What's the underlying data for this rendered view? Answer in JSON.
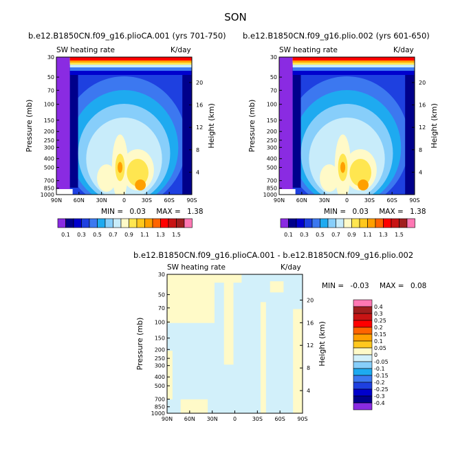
{
  "title": "SON",
  "chart_data": [
    {
      "type": "heatmap",
      "title": "b.e12.B1850CN.f09_g16.plioCA.001 (yrs 701-750)",
      "subtitle_left": "SW heating rate",
      "subtitle_right": "K/day",
      "ylabel": "Pressure (mb)",
      "ylabel_right": "Height (km)",
      "x_ticks": [
        "90N",
        "60N",
        "30N",
        "0",
        "30S",
        "60S",
        "90S"
      ],
      "y_ticks": [
        "30",
        "50",
        "70",
        "100",
        "150",
        "200",
        "250",
        "300",
        "400",
        "500",
        "700",
        "850",
        "1000"
      ],
      "y_ticks_right": [
        "20",
        "16",
        "12",
        "8",
        "4"
      ],
      "stats": {
        "min_label": "MIN =",
        "min": "0.03",
        "max_label": "MAX =",
        "max": "1.38"
      },
      "colorbar_labels": [
        "0.1",
        "0.3",
        "0.5",
        "0.7",
        "0.9",
        "1.1",
        "1.3",
        "1.5"
      ],
      "ylim": [
        1000,
        30
      ]
    },
    {
      "type": "heatmap",
      "title": "b.e12.B1850CN.f09_g16.plio.002 (yrs 601-650)",
      "subtitle_left": "SW heating rate",
      "subtitle_right": "K/day",
      "ylabel": "Pressure (mb)",
      "ylabel_right": "Height (km)",
      "x_ticks": [
        "90N",
        "60N",
        "30N",
        "0",
        "30S",
        "60S",
        "90S"
      ],
      "y_ticks": [
        "30",
        "50",
        "70",
        "100",
        "150",
        "200",
        "250",
        "300",
        "400",
        "500",
        "700",
        "850",
        "1000"
      ],
      "y_ticks_right": [
        "20",
        "16",
        "12",
        "8",
        "4"
      ],
      "stats": {
        "min_label": "MIN =",
        "min": "0.03",
        "max_label": "MAX =",
        "max": "1.38"
      },
      "colorbar_labels": [
        "0.1",
        "0.3",
        "0.5",
        "0.7",
        "0.9",
        "1.1",
        "1.3",
        "1.5"
      ],
      "ylim": [
        1000,
        30
      ]
    },
    {
      "type": "heatmap",
      "title": "b.e12.B1850CN.f09_g16.plioCA.001 - b.e12.B1850CN.f09_g16.plio.002",
      "subtitle_left": "SW heating rate",
      "subtitle_right": "K/day",
      "ylabel": "Pressure (mb)",
      "ylabel_right": "Height (km)",
      "x_ticks": [
        "90N",
        "60N",
        "30N",
        "0",
        "30S",
        "60S",
        "90S"
      ],
      "y_ticks": [
        "30",
        "50",
        "70",
        "100",
        "150",
        "200",
        "250",
        "300",
        "400",
        "500",
        "700",
        "850",
        "1000"
      ],
      "y_ticks_right": [
        "20",
        "16",
        "12",
        "8",
        "4"
      ],
      "stats": {
        "min_label": "MIN =",
        "min": "-0.03",
        "max_label": "MAX =",
        "max": "0.08"
      },
      "colorbar_labels": [
        "0.4",
        "0.3",
        "0.25",
        "0.2",
        "0.15",
        "0.1",
        "0.05",
        "0",
        "-0.05",
        "-0.1",
        "-0.15",
        "-0.2",
        "-0.25",
        "-0.3",
        "-0.4"
      ],
      "ylim": [
        1000,
        30
      ]
    }
  ],
  "colors": {
    "abs_scale": [
      "#8a2be2",
      "#00008b",
      "#0000cd",
      "#1e40e0",
      "#3c78f0",
      "#1eaaf0",
      "#87cefa",
      "#c8ecfa",
      "#fffac8",
      "#ffe650",
      "#ffc81e",
      "#ffa000",
      "#ff6400",
      "#ff0000",
      "#c81414",
      "#a01e1e",
      "#ff78b4"
    ],
    "diff_scale": [
      "#ff78b4",
      "#a01e1e",
      "#c81414",
      "#ff0000",
      "#ff6400",
      "#ffa000",
      "#ffc81e",
      "#fffac8",
      "#d2f0fa",
      "#87cefa",
      "#1eaaf0",
      "#3c78f0",
      "#1e40e0",
      "#0000cd",
      "#00008b",
      "#8a2be2"
    ]
  }
}
